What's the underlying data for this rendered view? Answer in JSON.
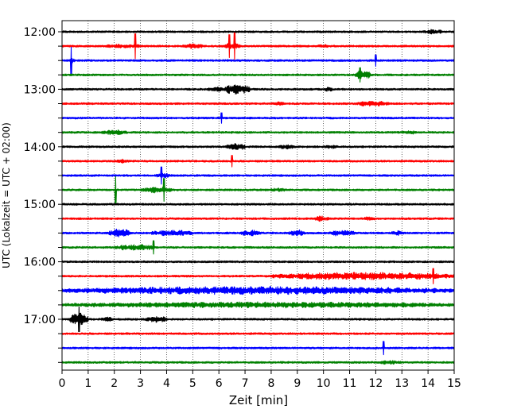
{
  "chart_data": {
    "type": "line",
    "subtype": "seismogram-helicorder",
    "xlabel": "Zeit  [min]",
    "ylabel": "UTC (Lokalzeit = UTC + 02:00)",
    "xlim": [
      0,
      15
    ],
    "x_ticks": [
      0,
      1,
      2,
      3,
      4,
      5,
      6,
      7,
      8,
      9,
      10,
      11,
      12,
      13,
      14,
      15
    ],
    "y_tick_labels": [
      "12:00",
      "13:00",
      "14:00",
      "15:00",
      "16:00",
      "17:00"
    ],
    "grid": "vertical dotted",
    "colors": [
      "#000000",
      "#ff0000",
      "#0000ff",
      "#008000"
    ],
    "trace_start_times": [
      "12:00",
      "12:15",
      "12:30",
      "12:45",
      "13:00",
      "13:15",
      "13:30",
      "13:45",
      "14:00",
      "14:15",
      "14:30",
      "14:45",
      "15:00",
      "15:15",
      "15:30",
      "15:45",
      "16:00",
      "16:15",
      "16:30",
      "16:45",
      "17:00",
      "17:15",
      "17:30",
      "17:45"
    ],
    "traces": [
      {
        "events": [
          [
            13.8,
            14.6,
            1.2
          ]
        ],
        "spikes": []
      },
      {
        "events": [
          [
            1.5,
            3.2,
            1.0
          ],
          [
            4.6,
            5.4,
            1.3
          ],
          [
            6.1,
            6.8,
            1.5
          ],
          [
            9.8,
            10.2,
            1.0
          ]
        ],
        "spikes": [
          [
            2.8,
            2.6
          ],
          [
            6.4,
            2.4
          ],
          [
            6.6,
            2.8
          ]
        ]
      },
      {
        "events": [
          [
            0.3,
            0.5,
            1.4
          ]
        ],
        "spikes": [
          [
            0.35,
            2.8
          ],
          [
            12.0,
            1.2
          ]
        ]
      },
      {
        "events": [
          [
            11.2,
            11.8,
            2.2
          ]
        ],
        "spikes": [
          [
            11.4,
            1.5
          ]
        ]
      },
      {
        "events": [
          [
            6.2,
            7.2,
            2.6
          ],
          [
            5.6,
            6.2,
            1.3
          ],
          [
            10.0,
            10.4,
            1.2
          ]
        ],
        "spikes": []
      },
      {
        "events": [
          [
            11.2,
            12.5,
            1.4
          ],
          [
            8.0,
            8.6,
            1.0
          ]
        ],
        "spikes": []
      },
      {
        "events": [],
        "spikes": [
          [
            6.1,
            1.1
          ]
        ]
      },
      {
        "events": [
          [
            1.5,
            2.5,
            1.3
          ],
          [
            13.0,
            13.6,
            1.0
          ]
        ],
        "spikes": []
      },
      {
        "events": [
          [
            6.3,
            7.0,
            1.8
          ],
          [
            8.3,
            8.9,
            1.2
          ],
          [
            10.0,
            10.6,
            1.0
          ]
        ],
        "spikes": []
      },
      {
        "events": [
          [
            2.0,
            2.6,
            1.0
          ]
        ],
        "spikes": [
          [
            6.5,
            1.2
          ]
        ]
      },
      {
        "events": [
          [
            3.6,
            4.2,
            1.2
          ]
        ],
        "spikes": [
          [
            3.8,
            1.8
          ]
        ]
      },
      {
        "events": [
          [
            3.0,
            4.2,
            1.5
          ],
          [
            8.0,
            8.6,
            1.1
          ]
        ],
        "spikes": [
          [
            2.05,
            2.8
          ],
          [
            3.9,
            2.4
          ]
        ]
      },
      {
        "events": [],
        "spikes": []
      },
      {
        "events": [
          [
            9.6,
            10.2,
            1.4
          ],
          [
            11.5,
            12.0,
            1.0
          ]
        ],
        "spikes": []
      },
      {
        "events": [
          [
            1.8,
            2.6,
            2.2
          ],
          [
            3.4,
            5.0,
            1.5
          ],
          [
            6.8,
            7.6,
            1.6
          ],
          [
            8.7,
            9.3,
            1.7
          ],
          [
            10.2,
            11.2,
            1.6
          ],
          [
            12.6,
            13.1,
            1.3
          ]
        ],
        "spikes": []
      },
      {
        "events": [
          [
            2.0,
            3.6,
            1.5
          ]
        ],
        "spikes": [
          [
            3.5,
            1.4
          ]
        ]
      },
      {
        "events": [],
        "spikes": []
      },
      {
        "events": [
          [
            8.0,
            15.0,
            1.9
          ]
        ],
        "spikes": [
          [
            14.2,
            1.6
          ]
        ]
      },
      {
        "events": [
          [
            0.0,
            15.0,
            2.0
          ]
        ],
        "spikes": []
      },
      {
        "events": [
          [
            0.0,
            15.0,
            1.5
          ]
        ],
        "spikes": []
      },
      {
        "events": [
          [
            0.3,
            1.0,
            3.2
          ],
          [
            1.5,
            2.0,
            1.2
          ],
          [
            3.2,
            4.0,
            1.6
          ]
        ],
        "spikes": [
          [
            0.65,
            2.6
          ]
        ]
      },
      {
        "events": [],
        "spikes": []
      },
      {
        "events": [],
        "spikes": [
          [
            12.3,
            1.4
          ]
        ]
      },
      {
        "events": [
          [
            12.0,
            13.0,
            1.0
          ]
        ],
        "spikes": []
      }
    ]
  }
}
